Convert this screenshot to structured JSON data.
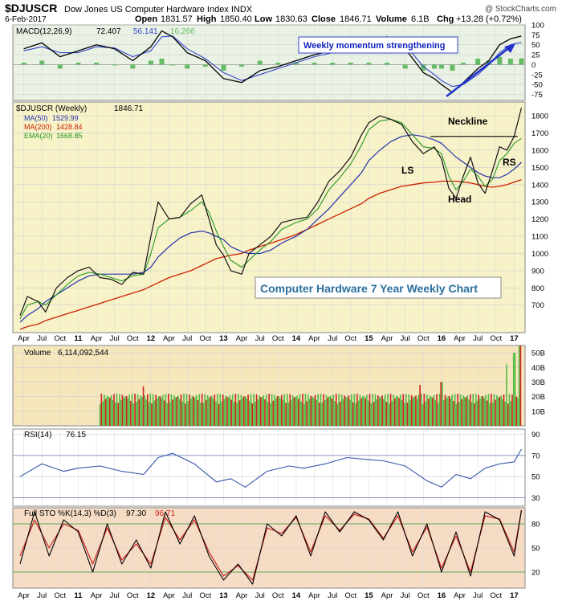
{
  "header": {
    "symbol": "$DJUSCR",
    "name": "Dow Jones US Computer Hardware Index INDX",
    "credit": "@ StockCharts.com",
    "date": "6-Feb-2017",
    "open_label": "Open",
    "open": "1831.57",
    "high_label": "High",
    "high": "1850.40",
    "low_label": "Low",
    "low": "1830.63",
    "close_label": "Close",
    "close": "1846.71",
    "volume_label": "Volume",
    "volume": "6.1B",
    "chg_label": "Chg",
    "chg": "+13.28 (+0.72%)"
  },
  "colors": {
    "price_bg": "#f8f2c8",
    "macd_bg": "#e9f2e4",
    "volume_bg": "#f6e6bc",
    "rsi_bg": "#ffffff",
    "sto_bg": "#f6dcc4",
    "macd_line": "#000000",
    "signal_line": "#3344cc",
    "histogram": "#66bb66",
    "ma50": "#2233aa",
    "ma200": "#cc2200",
    "ema20": "#229922",
    "up_volume": "#55bb44",
    "down_volume": "#cc2222",
    "rsi_line": "#3355aa",
    "sto_k": "#000000",
    "sto_d": "#cc2222"
  },
  "chart_data": [
    {
      "type": "line",
      "panel": "macd",
      "label": "MACD(12,26,9)",
      "macd_value": "72.407",
      "signal_value": "56.141",
      "hist_value": "16.266",
      "ylim": [
        -90,
        100
      ],
      "ticks": [
        100,
        75,
        50,
        25,
        0,
        -25,
        -50,
        -75
      ],
      "annotation": "Weekly momentum strengthening",
      "x": [
        2010.25,
        2010.5,
        2010.75,
        2011,
        2011.25,
        2011.5,
        2011.75,
        2012,
        2012.15,
        2012.3,
        2012.5,
        2012.75,
        2013,
        2013.25,
        2013.5,
        2013.75,
        2014,
        2014.25,
        2014.5,
        2014.75,
        2015,
        2015.25,
        2015.5,
        2015.75,
        2015.9,
        2016,
        2016.15,
        2016.3,
        2016.5,
        2016.65,
        2016.8,
        2016.95,
        2017.1
      ],
      "macd": [
        40,
        55,
        20,
        35,
        50,
        40,
        10,
        45,
        85,
        70,
        30,
        10,
        -35,
        -45,
        -15,
        -5,
        10,
        25,
        35,
        45,
        60,
        70,
        40,
        -20,
        -35,
        -50,
        -70,
        -45,
        -10,
        10,
        50,
        65,
        72
      ],
      "signal": [
        35,
        45,
        30,
        30,
        45,
        42,
        20,
        35,
        70,
        72,
        40,
        15,
        -20,
        -40,
        -25,
        -10,
        5,
        20,
        30,
        40,
        55,
        65,
        50,
        -5,
        -25,
        -40,
        -55,
        -50,
        -25,
        0,
        30,
        50,
        56
      ]
    },
    {
      "type": "line",
      "panel": "price",
      "label": "$DJUSCR (Weekly)",
      "last": "1846.71",
      "ma50_label": "MA(50)",
      "ma50_value": "1529.99",
      "ma200_label": "MA(200)",
      "ma200_value": "1428.84",
      "ema20_label": "EMA(20)",
      "ema20_value": "1668.85",
      "ylim": [
        540,
        1880
      ],
      "ticks": [
        1800,
        1700,
        1600,
        1500,
        1400,
        1300,
        1200,
        1100,
        1000,
        900,
        800,
        700
      ],
      "title_box": "Computer Hardware 7 Year Weekly Chart",
      "annotations": [
        "Neckline",
        "LS",
        "Head",
        "RS"
      ],
      "neckline": {
        "x": [
          2015.85,
          2017.05
        ],
        "y": [
          1680,
          1680
        ]
      },
      "x": [
        2010.2,
        2010.3,
        2010.45,
        2010.55,
        2010.7,
        2010.85,
        2011,
        2011.15,
        2011.3,
        2011.45,
        2011.6,
        2011.75,
        2011.9,
        2012,
        2012.1,
        2012.25,
        2012.4,
        2012.55,
        2012.7,
        2012.8,
        2012.9,
        2013,
        2013.1,
        2013.25,
        2013.35,
        2013.5,
        2013.65,
        2013.8,
        2014,
        2014.15,
        2014.3,
        2014.45,
        2014.6,
        2014.75,
        2014.9,
        2015,
        2015.15,
        2015.3,
        2015.45,
        2015.6,
        2015.75,
        2015.9,
        2016,
        2016.1,
        2016.2,
        2016.3,
        2016.4,
        2016.5,
        2016.6,
        2016.7,
        2016.8,
        2016.9,
        2017,
        2017.1
      ],
      "close": [
        640,
        750,
        720,
        660,
        800,
        860,
        900,
        920,
        860,
        850,
        820,
        890,
        880,
        1100,
        1300,
        1200,
        1210,
        1290,
        1340,
        1200,
        1050,
        990,
        900,
        880,
        1000,
        1050,
        1100,
        1180,
        1200,
        1210,
        1300,
        1420,
        1480,
        1560,
        1690,
        1760,
        1800,
        1780,
        1750,
        1650,
        1580,
        1620,
        1550,
        1380,
        1320,
        1450,
        1560,
        1410,
        1350,
        1480,
        1620,
        1600,
        1680,
        1847
      ],
      "ma50": [
        600,
        640,
        680,
        720,
        760,
        800,
        840,
        870,
        880,
        880,
        880,
        880,
        890,
        920,
        980,
        1040,
        1090,
        1120,
        1130,
        1120,
        1100,
        1080,
        1040,
        1010,
        1000,
        1000,
        1020,
        1060,
        1100,
        1140,
        1200,
        1260,
        1330,
        1400,
        1470,
        1540,
        1600,
        1650,
        1680,
        1690,
        1680,
        1660,
        1640,
        1600,
        1560,
        1530,
        1500,
        1470,
        1450,
        1440,
        1440,
        1460,
        1490,
        1530
      ],
      "ma200": [
        560,
        575,
        590,
        610,
        630,
        650,
        670,
        690,
        710,
        730,
        750,
        770,
        790,
        810,
        830,
        860,
        880,
        900,
        930,
        950,
        970,
        980,
        990,
        1000,
        1020,
        1040,
        1060,
        1080,
        1110,
        1140,
        1170,
        1200,
        1230,
        1260,
        1290,
        1320,
        1350,
        1370,
        1390,
        1400,
        1410,
        1415,
        1420,
        1420,
        1420,
        1415,
        1410,
        1400,
        1390,
        1385,
        1390,
        1400,
        1415,
        1429
      ],
      "ema20": [
        620,
        700,
        720,
        700,
        760,
        820,
        870,
        890,
        880,
        860,
        840,
        870,
        880,
        1000,
        1150,
        1200,
        1210,
        1250,
        1300,
        1240,
        1130,
        1040,
        960,
        920,
        960,
        1020,
        1070,
        1140,
        1180,
        1200,
        1260,
        1370,
        1440,
        1520,
        1630,
        1720,
        1770,
        1780,
        1760,
        1690,
        1620,
        1610,
        1580,
        1450,
        1370,
        1420,
        1490,
        1450,
        1390,
        1430,
        1540,
        1580,
        1640,
        1669
      ]
    },
    {
      "type": "bar",
      "panel": "volume",
      "label": "Volume",
      "value": "6,114,092,544",
      "ylim": [
        0,
        55
      ],
      "unit": "B",
      "ticks": [
        50,
        40,
        30,
        20,
        10
      ],
      "tick_labels": [
        "50B",
        "40B",
        "30B",
        "20B",
        "10B"
      ],
      "x_start": 2011.3,
      "x_end": 2017.1,
      "typical": 20,
      "spikes": [
        {
          "x": 2011.9,
          "v": 27
        },
        {
          "x": 2015.7,
          "v": 28
        },
        {
          "x": 2016.0,
          "v": 30
        },
        {
          "x": 2016.9,
          "v": 42
        },
        {
          "x": 2017.0,
          "v": 50
        },
        {
          "x": 2017.08,
          "v": 55
        }
      ]
    },
    {
      "type": "line",
      "panel": "rsi",
      "label": "RSI(14)",
      "value": "76.15",
      "ylim": [
        22,
        95
      ],
      "ticks": [
        90,
        70,
        50,
        30
      ],
      "x": [
        2010.2,
        2010.5,
        2010.8,
        2011,
        2011.3,
        2011.6,
        2011.9,
        2012.1,
        2012.3,
        2012.6,
        2012.9,
        2013.1,
        2013.3,
        2013.6,
        2013.9,
        2014.1,
        2014.4,
        2014.7,
        2015,
        2015.2,
        2015.5,
        2015.8,
        2016,
        2016.2,
        2016.4,
        2016.6,
        2016.8,
        2017,
        2017.1
      ],
      "values": [
        50,
        62,
        55,
        58,
        60,
        55,
        52,
        68,
        72,
        62,
        45,
        48,
        40,
        55,
        60,
        58,
        62,
        68,
        66,
        65,
        60,
        46,
        40,
        52,
        48,
        58,
        62,
        64,
        76
      ]
    },
    {
      "type": "line",
      "panel": "sto",
      "label": "Full STO %K(14,3) %D(3)",
      "k_value": "97.30",
      "d_value": "96.71",
      "ylim": [
        0,
        100
      ],
      "ticks": [
        80,
        50,
        20
      ],
      "x": [
        2010.2,
        2010.4,
        2010.6,
        2010.8,
        2011,
        2011.2,
        2011.4,
        2011.6,
        2011.8,
        2012,
        2012.2,
        2012.4,
        2012.6,
        2012.8,
        2013,
        2013.2,
        2013.4,
        2013.6,
        2013.8,
        2014,
        2014.2,
        2014.4,
        2014.6,
        2014.8,
        2015,
        2015.2,
        2015.4,
        2015.6,
        2015.8,
        2016,
        2016.2,
        2016.4,
        2016.6,
        2016.8,
        2017,
        2017.1
      ],
      "k": [
        30,
        95,
        40,
        85,
        70,
        20,
        80,
        30,
        60,
        25,
        95,
        55,
        90,
        40,
        10,
        30,
        5,
        80,
        65,
        90,
        40,
        95,
        70,
        95,
        85,
        60,
        95,
        40,
        80,
        20,
        70,
        15,
        95,
        85,
        40,
        97
      ],
      "d": [
        40,
        85,
        50,
        80,
        72,
        30,
        75,
        35,
        55,
        30,
        88,
        60,
        85,
        45,
        15,
        28,
        10,
        75,
        68,
        88,
        45,
        90,
        72,
        92,
        86,
        62,
        90,
        45,
        76,
        25,
        65,
        20,
        90,
        86,
        45,
        97
      ]
    }
  ],
  "xaxis": {
    "labels": [
      {
        "t": 2010.25,
        "text": "Apr"
      },
      {
        "t": 2010.5,
        "text": "Jul"
      },
      {
        "t": 2010.75,
        "text": "Oct"
      },
      {
        "t": 2011,
        "text": "11"
      },
      {
        "t": 2011.25,
        "text": "Apr"
      },
      {
        "t": 2011.5,
        "text": "Jul"
      },
      {
        "t": 2011.75,
        "text": "Oct"
      },
      {
        "t": 2012,
        "text": "12"
      },
      {
        "t": 2012.25,
        "text": "Apr"
      },
      {
        "t": 2012.5,
        "text": "Jul"
      },
      {
        "t": 2012.75,
        "text": "Oct"
      },
      {
        "t": 2013,
        "text": "13"
      },
      {
        "t": 2013.25,
        "text": "Apr"
      },
      {
        "t": 2013.5,
        "text": "Jul"
      },
      {
        "t": 2013.75,
        "text": "Oct"
      },
      {
        "t": 2014,
        "text": "14"
      },
      {
        "t": 2014.25,
        "text": "Apr"
      },
      {
        "t": 2014.5,
        "text": "Jul"
      },
      {
        "t": 2014.75,
        "text": "Oct"
      },
      {
        "t": 2015,
        "text": "15"
      },
      {
        "t": 2015.25,
        "text": "Apr"
      },
      {
        "t": 2015.5,
        "text": "Jul"
      },
      {
        "t": 2015.75,
        "text": "Oct"
      },
      {
        "t": 2016,
        "text": "16"
      },
      {
        "t": 2016.25,
        "text": "Apr"
      },
      {
        "t": 2016.5,
        "text": "Jul"
      },
      {
        "t": 2016.75,
        "text": "Oct"
      },
      {
        "t": 2017,
        "text": "17"
      }
    ]
  }
}
